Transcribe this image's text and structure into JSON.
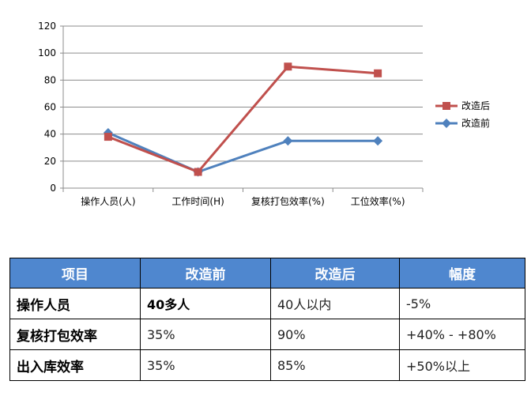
{
  "chart_data": {
    "type": "line",
    "categories": [
      "操作人员(人)",
      "工作时间(H)",
      "复核打包效率(%)",
      "工位效率(%)"
    ],
    "series": [
      {
        "name": "改造后",
        "values": [
          38,
          12,
          90,
          85
        ],
        "color": "#c0504d"
      },
      {
        "name": "改造前",
        "values": [
          41,
          12,
          35,
          35
        ],
        "color": "#4f81bd"
      }
    ],
    "y_ticks": [
      0,
      20,
      40,
      60,
      80,
      100,
      120
    ],
    "ylim": [
      0,
      120
    ],
    "grid": true,
    "legend": "right"
  },
  "table": {
    "headers": [
      "项目",
      "改造前",
      "改造后",
      "幅度"
    ],
    "rows": [
      {
        "label": "操作人员",
        "before": "40多人",
        "after": "40人以内",
        "change": "-5%"
      },
      {
        "label": "复核打包效率",
        "before": "35%",
        "after": "90%",
        "change": "+40% - +80%"
      },
      {
        "label": "出入库效率",
        "before": "35%",
        "after": "85%",
        "change": "+50%以上"
      }
    ]
  }
}
